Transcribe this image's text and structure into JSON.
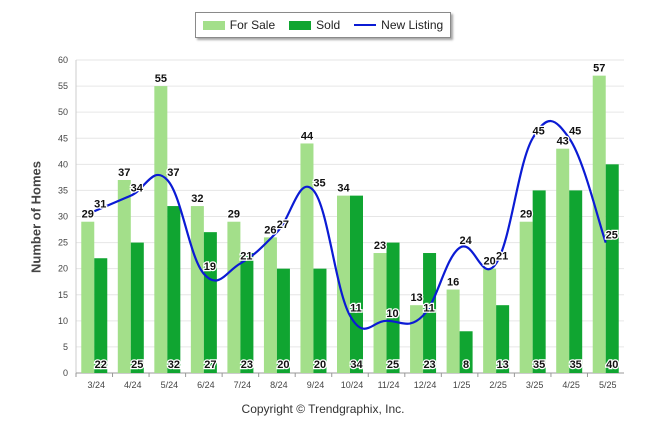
{
  "legend": {
    "items": [
      {
        "label": "For Sale",
        "color": "#a3df8a",
        "kind": "bar"
      },
      {
        "label": "Sold",
        "color": "#10a531",
        "kind": "bar"
      },
      {
        "label": "New Listing",
        "color": "#0b1bd4",
        "kind": "line"
      }
    ]
  },
  "footer": {
    "copyright": "Copyright © Trendgraphix, Inc."
  },
  "chart_data": {
    "type": "bar",
    "ylabel": "Number of Homes",
    "xlabel": "",
    "ylim": [
      0,
      60
    ],
    "yticks": [
      0,
      5,
      10,
      15,
      20,
      25,
      30,
      35,
      40,
      45,
      50,
      55,
      60
    ],
    "grid": true,
    "legend_position": "top-center",
    "categories": [
      "3/24",
      "4/24",
      "5/24",
      "6/24",
      "7/24",
      "8/24",
      "9/24",
      "10/24",
      "11/24",
      "12/24",
      "1/25",
      "2/25",
      "3/25",
      "4/25",
      "5/25"
    ],
    "series": [
      {
        "name": "For Sale",
        "type": "bar",
        "color": "#a3df8a",
        "values": [
          29,
          37,
          55,
          32,
          29,
          26,
          44,
          34,
          23,
          13,
          16,
          20,
          29,
          43,
          57
        ]
      },
      {
        "name": "Sold",
        "type": "bar",
        "color": "#10a531",
        "values": [
          22,
          25,
          32,
          27,
          23,
          20,
          20,
          34,
          25,
          23,
          8,
          13,
          35,
          35,
          40
        ]
      },
      {
        "name": "New Listing",
        "type": "line",
        "color": "#0b1bd4",
        "values": [
          31,
          34,
          37,
          19,
          21,
          27,
          35,
          11,
          10,
          11,
          24,
          21,
          45,
          45,
          25
        ]
      }
    ]
  }
}
